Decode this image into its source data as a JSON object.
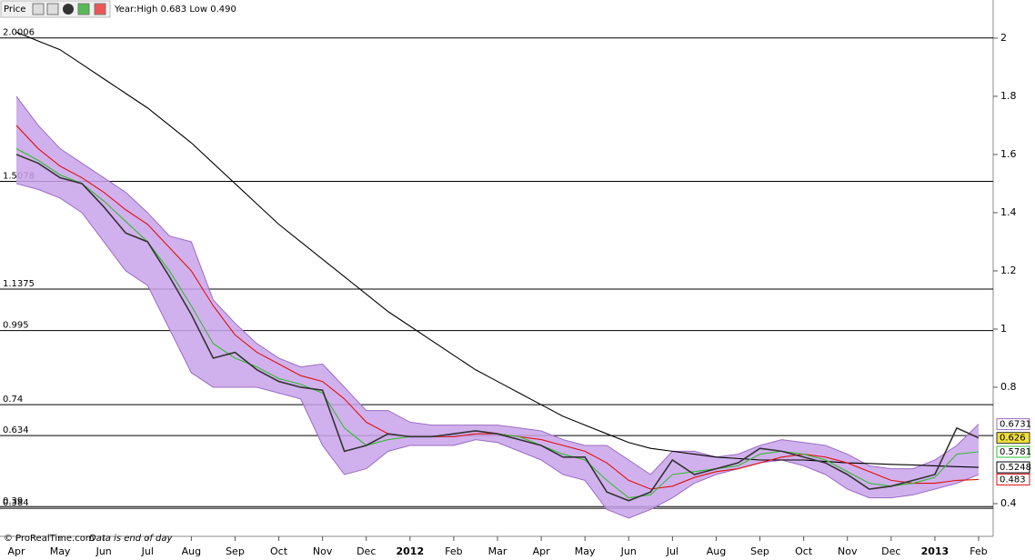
{
  "header": {
    "title": "Price",
    "info": "Year:High 0.683 Low 0.490"
  },
  "footer": {
    "source": "© ProRealTime.com",
    "note": "Data is end of day"
  },
  "chart_data": {
    "type": "line",
    "categories": [
      "Apr",
      null,
      "May",
      null,
      "Jun",
      null,
      "Jul",
      null,
      "Aug",
      null,
      "Sep",
      null,
      "Oct",
      null,
      "Nov",
      null,
      "Dec",
      null,
      "2012",
      null,
      "Feb",
      null,
      "Mar",
      null,
      "Apr",
      null,
      "May",
      null,
      "Jun",
      null,
      "Jul",
      null,
      "Aug",
      null,
      "Sep",
      null,
      "Oct",
      null,
      "Nov",
      null,
      "Dec",
      null,
      "2013",
      null,
      "Feb"
    ],
    "ylim": [
      0.2875,
      2.131
    ],
    "yticks": [
      0.4,
      0.8,
      1,
      1.2,
      1.4,
      1.6,
      1.8,
      2
    ],
    "levels": [
      2.0006,
      1.5078,
      1.1375,
      0.995,
      0.74,
      0.634,
      0.39,
      0.384
    ],
    "band": {
      "color": "#c9a3ea",
      "edge": "#9b6cc4",
      "upper": [
        1.8,
        1.7,
        1.62,
        1.57,
        1.52,
        1.47,
        1.4,
        1.32,
        1.3,
        1.1,
        1.02,
        0.95,
        0.9,
        0.87,
        0.88,
        0.8,
        0.72,
        0.72,
        0.68,
        0.67,
        0.67,
        0.67,
        0.67,
        0.66,
        0.65,
        0.62,
        0.6,
        0.6,
        0.55,
        0.5,
        0.58,
        0.58,
        0.56,
        0.57,
        0.6,
        0.62,
        0.61,
        0.6,
        0.57,
        0.53,
        0.52,
        0.52,
        0.55,
        0.6,
        0.6731
      ],
      "lower": [
        1.5,
        1.48,
        1.45,
        1.4,
        1.3,
        1.2,
        1.15,
        1.0,
        0.85,
        0.8,
        0.8,
        0.8,
        0.78,
        0.76,
        0.6,
        0.5,
        0.52,
        0.58,
        0.6,
        0.6,
        0.6,
        0.62,
        0.61,
        0.58,
        0.55,
        0.5,
        0.48,
        0.38,
        0.35,
        0.38,
        0.42,
        0.47,
        0.5,
        0.52,
        0.54,
        0.55,
        0.53,
        0.5,
        0.45,
        0.42,
        0.42,
        0.43,
        0.45,
        0.47,
        0.5
      ]
    },
    "series": [
      {
        "color": "#000000",
        "values": [
          2.02,
          1.99,
          1.96,
          1.91,
          1.86,
          1.81,
          1.76,
          1.7,
          1.64,
          1.57,
          1.5,
          1.43,
          1.36,
          1.3,
          1.24,
          1.18,
          1.12,
          1.06,
          1.01,
          0.96,
          0.91,
          0.86,
          0.82,
          0.78,
          0.74,
          0.7,
          0.67,
          0.64,
          0.61,
          0.59,
          0.58,
          0.57,
          0.56,
          0.555,
          0.55,
          0.55,
          0.55,
          0.545,
          0.54,
          0.538,
          0.535,
          0.533,
          0.53,
          0.527,
          0.5248
        ]
      },
      {
        "color": "#e01010",
        "values": [
          1.7,
          1.62,
          1.56,
          1.52,
          1.47,
          1.41,
          1.36,
          1.28,
          1.2,
          1.08,
          0.98,
          0.92,
          0.88,
          0.84,
          0.82,
          0.76,
          0.68,
          0.64,
          0.63,
          0.63,
          0.63,
          0.64,
          0.64,
          0.63,
          0.62,
          0.6,
          0.58,
          0.54,
          0.48,
          0.45,
          0.46,
          0.49,
          0.51,
          0.52,
          0.54,
          0.56,
          0.57,
          0.56,
          0.54,
          0.51,
          0.48,
          0.47,
          0.47,
          0.48,
          0.483
        ]
      },
      {
        "color": "#33bb33",
        "values": [
          1.62,
          1.58,
          1.53,
          1.5,
          1.44,
          1.37,
          1.3,
          1.2,
          1.08,
          0.95,
          0.9,
          0.87,
          0.83,
          0.81,
          0.78,
          0.66,
          0.6,
          0.62,
          0.63,
          0.63,
          0.64,
          0.65,
          0.64,
          0.63,
          0.6,
          0.57,
          0.55,
          0.48,
          0.42,
          0.43,
          0.5,
          0.51,
          0.52,
          0.53,
          0.57,
          0.58,
          0.57,
          0.55,
          0.51,
          0.47,
          0.46,
          0.47,
          0.49,
          0.57,
          0.5781
        ]
      },
      {
        "color": "#333333",
        "highlight": "#f3df3a",
        "values": [
          1.6,
          1.57,
          1.52,
          1.5,
          1.42,
          1.33,
          1.3,
          1.18,
          1.05,
          0.9,
          0.92,
          0.86,
          0.82,
          0.8,
          0.79,
          0.58,
          0.6,
          0.64,
          0.63,
          0.63,
          0.64,
          0.65,
          0.64,
          0.62,
          0.6,
          0.56,
          0.56,
          0.44,
          0.41,
          0.44,
          0.55,
          0.5,
          0.52,
          0.54,
          0.59,
          0.58,
          0.56,
          0.54,
          0.5,
          0.45,
          0.46,
          0.48,
          0.5,
          0.66,
          0.626
        ]
      }
    ]
  }
}
